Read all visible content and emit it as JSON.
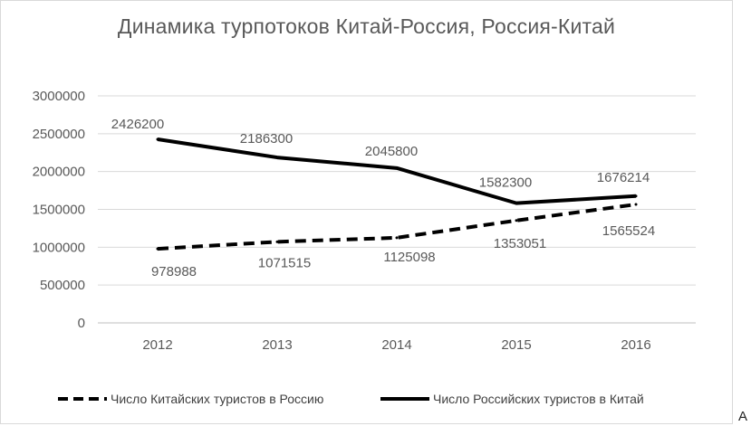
{
  "chart_data": {
    "type": "line",
    "title": "Динамика  турпотоков Китай-Россия, Россия-Китай",
    "categories": [
      "2012",
      "2013",
      "2014",
      "2015",
      "2016"
    ],
    "ylim": [
      0,
      3000000
    ],
    "yticks": [
      "0",
      "500000",
      "1000000",
      "1500000",
      "2000000",
      "2500000",
      "3000000"
    ],
    "grid": true,
    "legend_position": "bottom",
    "series": [
      {
        "name": "Число Китайских туристов в Россию",
        "style": "dashed",
        "color": "#000000",
        "values": [
          978988,
          1071515,
          1125098,
          1353051,
          1565524
        ],
        "labels": [
          "978988",
          "1071515",
          "1125098",
          "1353051",
          "1565524"
        ]
      },
      {
        "name": "Число Российских туристов в Китай",
        "style": "solid",
        "color": "#000000",
        "values": [
          2426200,
          2186300,
          2045800,
          1582300,
          1676214
        ],
        "labels": [
          "2426200",
          "2186300",
          "2045800",
          "1582300",
          "1676214"
        ]
      }
    ]
  },
  "corner_label": "A"
}
